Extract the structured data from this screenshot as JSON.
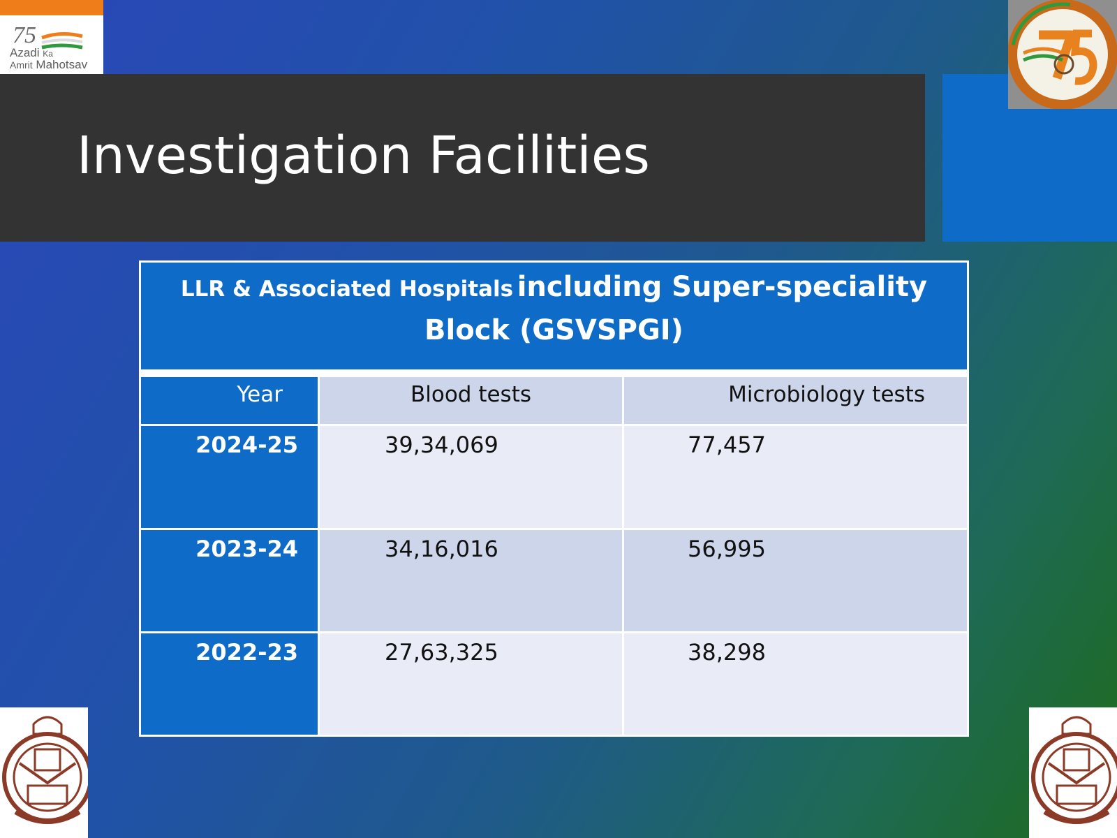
{
  "slide": {
    "title": "Investigation Facilities",
    "logo_left": {
      "name": "Azadi Ka Amrit Mahotsav",
      "text_line1": "Azadi",
      "text_ka": "Ka",
      "text_line2": "Amrit",
      "text_line3": "Mahotsav",
      "numeral": "75"
    }
  },
  "table": {
    "caption_small": "LLR & Associated Hospitals",
    "caption_big": "including Super-speciality",
    "caption_line2": "Block (GSVSPGI)",
    "columns": [
      "Year",
      "Blood tests",
      "Microbiology tests"
    ],
    "rows": [
      {
        "year": "2024-25",
        "blood": "39,34,069",
        "micro": "77,457"
      },
      {
        "year": "2023-24",
        "blood": "34,16,016",
        "micro": "56,995"
      },
      {
        "year": "2022-23",
        "blood": "27,63,325",
        "micro": "38,298"
      }
    ]
  },
  "colors": {
    "accent": "#0f6bc8",
    "title_bar": "#333333",
    "row_light": "#e9ecf6",
    "row_mid": "#cdd5ea"
  }
}
